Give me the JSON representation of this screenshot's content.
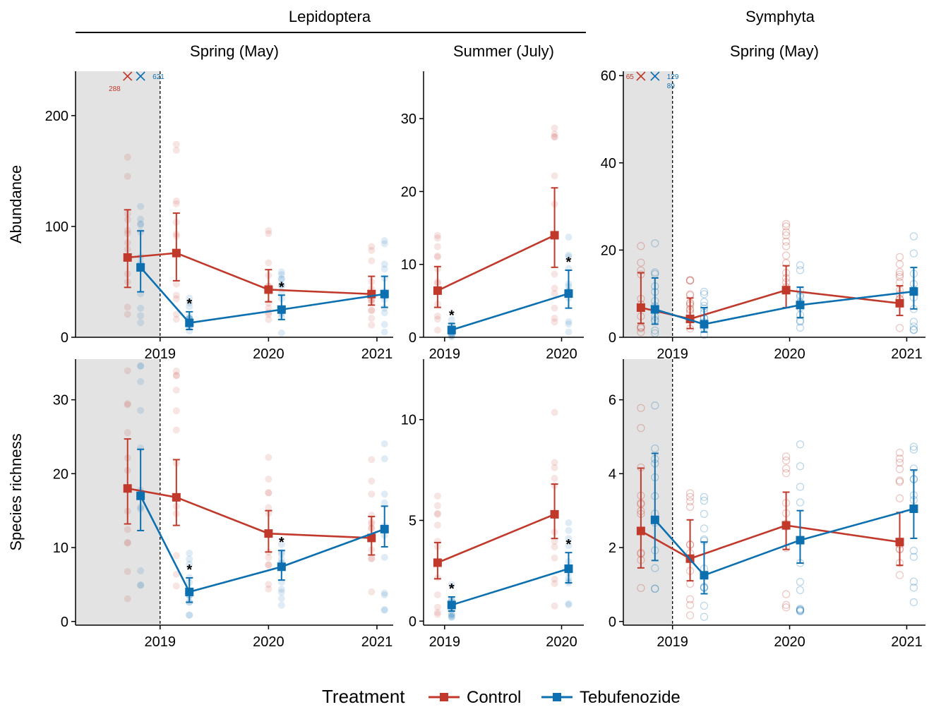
{
  "colors": {
    "control": "#c0392b",
    "tebufenozide": "#0b6fb0",
    "shade": "#e3e3e3",
    "axis": "#000000"
  },
  "headers": {
    "group1": "Lepidoptera",
    "group2": "Symphyta"
  },
  "legend": {
    "title": "Treatment",
    "items": [
      "Control",
      "Tebufenozide"
    ]
  },
  "chart_data": [
    {
      "type": "line",
      "title": "Spring (May)",
      "group": "Lepidoptera",
      "ylabel": "Abundance",
      "ylim": [
        0,
        240
      ],
      "yticks": [
        0,
        100,
        200
      ],
      "xlim": [
        2018.22,
        2021.15
      ],
      "xticks": [
        2019,
        2020,
        2021
      ],
      "shade_end": 2019,
      "outliers": [
        {
          "series": "Control",
          "label": "288"
        },
        {
          "series": "Tebufenozide",
          "label": "621"
        }
      ],
      "series": [
        {
          "name": "Control",
          "x": [
            2018.7,
            2019.15,
            2020.0,
            2020.95
          ],
          "y": [
            72,
            76,
            43,
            39
          ],
          "lo": [
            45,
            51,
            32,
            29
          ],
          "hi": [
            115,
            112,
            61,
            55
          ],
          "sig": [
            false,
            false,
            false,
            false
          ]
        },
        {
          "name": "Tebufenozide",
          "x": [
            2018.82,
            2019.27,
            2020.12,
            2021.07
          ],
          "y": [
            63,
            13,
            25,
            39
          ],
          "lo": [
            41,
            7,
            16,
            27
          ],
          "hi": [
            96,
            23,
            38,
            55
          ],
          "sig": [
            false,
            true,
            true,
            false
          ]
        }
      ]
    },
    {
      "type": "line",
      "title": "Summer (July)",
      "group": "Lepidoptera",
      "ylabel": "",
      "ylim": [
        0,
        36.5
      ],
      "yticks": [
        0,
        10,
        20,
        30
      ],
      "xlim": [
        2018.82,
        2020.19
      ],
      "xticks": [
        2019,
        2020
      ],
      "series": [
        {
          "name": "Control",
          "x": [
            2018.94,
            2019.94
          ],
          "y": [
            6.4,
            14
          ],
          "lo": [
            4.1,
            9.6
          ],
          "hi": [
            9.7,
            20.5
          ],
          "sig": [
            false,
            false
          ]
        },
        {
          "name": "Tebufenozide",
          "x": [
            2019.06,
            2020.06
          ],
          "y": [
            1.0,
            6.0
          ],
          "lo": [
            0.5,
            4.0
          ],
          "hi": [
            1.9,
            9.2
          ],
          "sig": [
            true,
            true
          ]
        }
      ]
    },
    {
      "type": "line",
      "title": "Spring (May)",
      "group": "Symphyta",
      "ylabel": "",
      "ylim": [
        0,
        61
      ],
      "yticks": [
        0,
        20,
        40,
        60
      ],
      "xlim": [
        2018.58,
        2021.16
      ],
      "xticks": [
        2019,
        2020,
        2021
      ],
      "shade_end": 2019,
      "outliers": [
        {
          "series": "Control",
          "label": "65"
        },
        {
          "series": "Tebufenozide",
          "label": "129"
        },
        {
          "series": "Tebufenozide",
          "label": "89"
        }
      ],
      "series": [
        {
          "name": "Control",
          "x": [
            2018.73,
            2019.15,
            2019.97,
            2020.94
          ],
          "y": [
            6.8,
            4.2,
            10.8,
            7.8
          ],
          "lo": [
            3.2,
            2.0,
            6.8,
            5.0
          ],
          "hi": [
            14.8,
            9.0,
            16.4,
            11.8
          ],
          "sig": [
            false,
            false,
            false,
            false
          ]
        },
        {
          "name": "Tebufenozide",
          "x": [
            2018.85,
            2019.27,
            2020.09,
            2021.06
          ],
          "y": [
            6.4,
            3.0,
            7.4,
            10.5
          ],
          "lo": [
            3.0,
            1.2,
            4.5,
            6.5
          ],
          "hi": [
            13.6,
            6.8,
            11.5,
            16.0
          ],
          "sig": [
            false,
            false,
            false,
            false
          ]
        }
      ]
    },
    {
      "type": "line",
      "title": "",
      "group": "Lepidoptera",
      "ylabel": "Species richness",
      "ylim": [
        -0.5,
        35.5
      ],
      "yticks": [
        0,
        10,
        20,
        30
      ],
      "xlim": [
        2018.22,
        2021.15
      ],
      "xticks": [
        2019,
        2020,
        2021
      ],
      "shade_end": 2019,
      "series": [
        {
          "name": "Control",
          "x": [
            2018.7,
            2019.15,
            2020.0,
            2020.95
          ],
          "y": [
            18.0,
            16.8,
            11.9,
            11.3
          ],
          "lo": [
            13.2,
            13.0,
            9.4,
            9.0
          ],
          "hi": [
            24.7,
            21.9,
            15.0,
            14.2
          ],
          "sig": [
            false,
            false,
            false,
            false
          ]
        },
        {
          "name": "Tebufenozide",
          "x": [
            2018.82,
            2019.27,
            2020.12,
            2021.07
          ],
          "y": [
            17.0,
            4.0,
            7.4,
            12.5
          ],
          "lo": [
            12.3,
            2.6,
            5.6,
            10.1
          ],
          "hi": [
            23.3,
            5.9,
            9.6,
            15.6
          ],
          "sig": [
            false,
            true,
            true,
            false
          ]
        }
      ]
    },
    {
      "type": "line",
      "title": "",
      "group": "Lepidoptera",
      "ylabel": "",
      "ylim": [
        -0.2,
        13.0
      ],
      "yticks": [
        0,
        5,
        10
      ],
      "xlim": [
        2018.82,
        2020.19
      ],
      "xticks": [
        2019,
        2020
      ],
      "series": [
        {
          "name": "Control",
          "x": [
            2018.94,
            2019.94
          ],
          "y": [
            2.9,
            5.3
          ],
          "lo": [
            2.1,
            4.1
          ],
          "hi": [
            3.9,
            6.8
          ],
          "sig": [
            false,
            false
          ]
        },
        {
          "name": "Tebufenozide",
          "x": [
            2019.06,
            2020.06
          ],
          "y": [
            0.8,
            2.6
          ],
          "lo": [
            0.5,
            1.9
          ],
          "hi": [
            1.2,
            3.4
          ],
          "sig": [
            true,
            true
          ]
        }
      ]
    },
    {
      "type": "line",
      "title": "",
      "group": "Symphyta",
      "ylabel": "",
      "ylim": [
        -0.1,
        7.1
      ],
      "yticks": [
        0,
        2,
        4,
        6
      ],
      "xlim": [
        2018.58,
        2021.16
      ],
      "xticks": [
        2019,
        2020,
        2021
      ],
      "shade_end": 2019,
      "series": [
        {
          "name": "Control",
          "x": [
            2018.73,
            2019.15,
            2019.97,
            2020.94
          ],
          "y": [
            2.45,
            1.7,
            2.6,
            2.15
          ],
          "lo": [
            1.45,
            1.1,
            1.95,
            1.52
          ],
          "hi": [
            4.15,
            2.75,
            3.5,
            2.95
          ],
          "sig": [
            false,
            false,
            false,
            false
          ]
        },
        {
          "name": "Tebufenozide",
          "x": [
            2018.85,
            2019.27,
            2020.09,
            2021.06
          ],
          "y": [
            2.75,
            1.25,
            2.2,
            3.05
          ],
          "lo": [
            1.65,
            0.75,
            1.58,
            2.25
          ],
          "hi": [
            4.55,
            2.15,
            3.0,
            4.1
          ],
          "sig": [
            false,
            false,
            false,
            false
          ]
        }
      ]
    }
  ]
}
